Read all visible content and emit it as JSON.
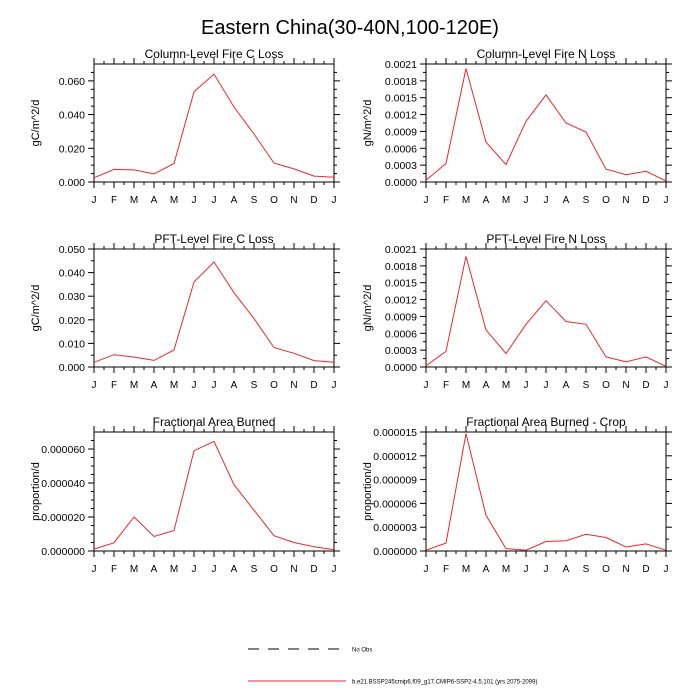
{
  "figure": {
    "title": "Eastern China(30-40N,100-120E)",
    "legend": [
      {
        "label": "No Obs",
        "style": "dashed",
        "color": "#000000"
      },
      {
        "label": "b.e21.BSSP245cmip6.f09_g17.CMIP6-SSP2-4.5.101 (yrs 2075-2099)",
        "style": "solid",
        "color": "#e8282b"
      }
    ]
  },
  "chart_data": [
    {
      "type": "line",
      "title": "Column-Level Fire C Loss",
      "ylabel": "gC/m^2/d",
      "categories": [
        "J",
        "F",
        "M",
        "A",
        "M",
        "J",
        "J",
        "A",
        "S",
        "O",
        "N",
        "D",
        "J"
      ],
      "ylim": [
        0,
        0.07
      ],
      "yticks": [
        0,
        0.02,
        0.04,
        0.06
      ],
      "ytick_labels": [
        "0.000",
        "0.020",
        "0.040",
        "0.060"
      ],
      "series": [
        {
          "values": [
            0.0025,
            0.0075,
            0.0072,
            0.0048,
            0.011,
            0.0535,
            0.064,
            0.0445,
            0.0285,
            0.0112,
            0.0078,
            0.0035,
            0.0028
          ],
          "color": "#e8282b"
        }
      ]
    },
    {
      "type": "line",
      "title": "Column-Level Fire N Loss",
      "ylabel": "gN/m^2/d",
      "categories": [
        "J",
        "F",
        "M",
        "A",
        "M",
        "J",
        "J",
        "A",
        "S",
        "O",
        "N",
        "D",
        "J"
      ],
      "ylim": [
        0,
        0.0021
      ],
      "yticks": [
        0,
        0.0003,
        0.0006,
        0.0009,
        0.0012,
        0.0015,
        0.0018,
        0.0021
      ],
      "ytick_labels": [
        "0.0000",
        "0.0003",
        "0.0006",
        "0.0009",
        "0.0012",
        "0.0015",
        "0.0018",
        "0.0021"
      ],
      "series": [
        {
          "values": [
            3e-05,
            0.00033,
            0.00202,
            0.00071,
            0.00031,
            0.00108,
            0.00155,
            0.00105,
            0.00089,
            0.00023,
            0.00013,
            0.00019,
            2e-05
          ],
          "color": "#e8282b"
        }
      ]
    },
    {
      "type": "line",
      "title": "PFT-Level Fire C Loss",
      "ylabel": "gC/m^2/d",
      "categories": [
        "J",
        "F",
        "M",
        "A",
        "M",
        "J",
        "J",
        "A",
        "S",
        "O",
        "N",
        "D",
        "J"
      ],
      "ylim": [
        0,
        0.05
      ],
      "yticks": [
        0,
        0.01,
        0.02,
        0.03,
        0.04,
        0.05
      ],
      "ytick_labels": [
        "0.000",
        "0.010",
        "0.020",
        "0.030",
        "0.040",
        "0.050"
      ],
      "series": [
        {
          "values": [
            0.002,
            0.0052,
            0.0042,
            0.0028,
            0.0072,
            0.036,
            0.0445,
            0.0315,
            0.0205,
            0.0082,
            0.0058,
            0.0027,
            0.002
          ],
          "color": "#e8282b"
        }
      ]
    },
    {
      "type": "line",
      "title": "PFT-Level Fire N Loss",
      "ylabel": "gN/m^2/d",
      "categories": [
        "J",
        "F",
        "M",
        "A",
        "M",
        "J",
        "J",
        "A",
        "S",
        "O",
        "N",
        "D",
        "J"
      ],
      "ylim": [
        0,
        0.0021
      ],
      "yticks": [
        0,
        0.0003,
        0.0006,
        0.0009,
        0.0012,
        0.0015,
        0.0018,
        0.0021
      ],
      "ytick_labels": [
        "0.0000",
        "0.0003",
        "0.0006",
        "0.0009",
        "0.0012",
        "0.0015",
        "0.0018",
        "0.0021"
      ],
      "series": [
        {
          "values": [
            2e-05,
            0.00028,
            0.00197,
            0.00066,
            0.00024,
            0.00076,
            0.00118,
            0.00081,
            0.00076,
            0.00018,
            9e-05,
            0.00018,
            1e-05
          ],
          "color": "#e8282b"
        }
      ]
    },
    {
      "type": "line",
      "title": "Fractional Area Burned",
      "ylabel": "proportion/d",
      "categories": [
        "J",
        "F",
        "M",
        "A",
        "M",
        "J",
        "J",
        "A",
        "S",
        "O",
        "N",
        "D",
        "J"
      ],
      "ylim": [
        0,
        7e-05
      ],
      "yticks": [
        0,
        2e-05,
        4e-05,
        6e-05
      ],
      "ytick_labels": [
        "0.000000",
        "0.000020",
        "0.000040",
        "0.000060"
      ],
      "series": [
        {
          "values": [
            1.2e-06,
            4.8e-06,
            2e-05,
            8.5e-06,
            1.2e-05,
            5.9e-05,
            6.45e-05,
            3.9e-05,
            2.4e-05,
            9e-06,
            5e-06,
            2.5e-06,
            8e-07
          ],
          "color": "#e8282b"
        }
      ]
    },
    {
      "type": "line",
      "title": "Fractional Area Burned - Crop",
      "ylabel": "proportion/d",
      "categories": [
        "J",
        "F",
        "M",
        "A",
        "M",
        "J",
        "J",
        "A",
        "S",
        "O",
        "N",
        "D",
        "J"
      ],
      "ylim": [
        0,
        1.5e-05
      ],
      "yticks": [
        0,
        3e-06,
        6e-06,
        9e-06,
        1.2e-05,
        1.5e-05
      ],
      "ytick_labels": [
        "0.000000",
        "0.000003",
        "0.000006",
        "0.000009",
        "0.000012",
        "0.000015"
      ],
      "series": [
        {
          "values": [
            1e-07,
            1e-06,
            1.48e-05,
            4.5e-06,
            3e-07,
            1e-07,
            1.2e-06,
            1.3e-06,
            2.1e-06,
            1.7e-06,
            5e-07,
            9e-07,
            1e-07
          ],
          "color": "#e8282b"
        }
      ]
    }
  ]
}
